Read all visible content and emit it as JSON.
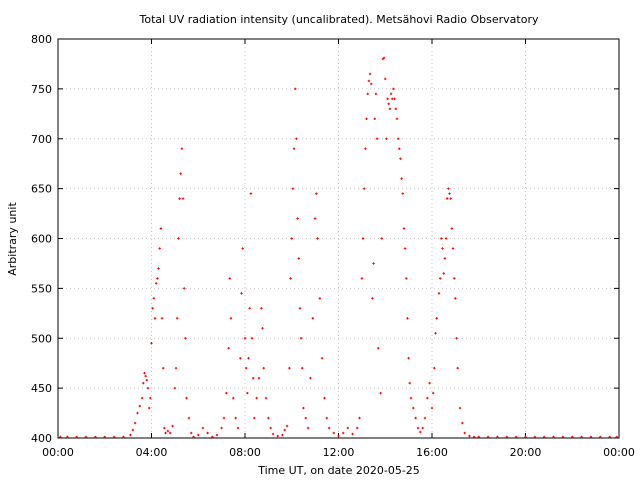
{
  "chart_data": {
    "type": "scatter",
    "title": "Total UV radiation intensity (uncalibrated). Metsähovi Radio Observatory",
    "xlabel": "Time UT, on date 2020-05-25",
    "ylabel": "Arbitrary unit",
    "xlim": [
      0,
      24
    ],
    "ylim": [
      400,
      800
    ],
    "xticks": [
      {
        "value": 0,
        "label": "00:00"
      },
      {
        "value": 4,
        "label": "04:00"
      },
      {
        "value": 8,
        "label": "08:00"
      },
      {
        "value": 12,
        "label": "12:00"
      },
      {
        "value": 16,
        "label": "16:00"
      },
      {
        "value": 20,
        "label": "20:00"
      },
      {
        "value": 24,
        "label": "00:00"
      }
    ],
    "yticks": [
      {
        "value": 400,
        "label": "400"
      },
      {
        "value": 450,
        "label": "450"
      },
      {
        "value": 500,
        "label": "500"
      },
      {
        "value": 550,
        "label": "550"
      },
      {
        "value": 600,
        "label": "600"
      },
      {
        "value": 650,
        "label": "650"
      },
      {
        "value": 700,
        "label": "700"
      },
      {
        "value": 750,
        "label": "750"
      },
      {
        "value": 800,
        "label": "800"
      }
    ],
    "grid": true,
    "series_color": "#ff0000",
    "points": [
      [
        0.1,
        401
      ],
      [
        0.4,
        401
      ],
      [
        0.8,
        401
      ],
      [
        1.2,
        401
      ],
      [
        1.6,
        401
      ],
      [
        2.0,
        401
      ],
      [
        2.4,
        401
      ],
      [
        2.8,
        401
      ],
      [
        3.1,
        403
      ],
      [
        3.2,
        408
      ],
      [
        3.3,
        415
      ],
      [
        3.4,
        425
      ],
      [
        3.5,
        432
      ],
      [
        3.6,
        440
      ],
      [
        3.65,
        455
      ],
      [
        3.7,
        465
      ],
      [
        3.75,
        462
      ],
      [
        3.8,
        458
      ],
      [
        3.85,
        450
      ],
      [
        3.9,
        430
      ],
      [
        3.95,
        440
      ],
      [
        4.0,
        495
      ],
      [
        4.05,
        530
      ],
      [
        4.1,
        540
      ],
      [
        4.15,
        520
      ],
      [
        4.2,
        555
      ],
      [
        4.25,
        560
      ],
      [
        4.3,
        570
      ],
      [
        4.35,
        590
      ],
      [
        4.4,
        610
      ],
      [
        4.45,
        520
      ],
      [
        4.5,
        470
      ],
      [
        4.55,
        410
      ],
      [
        4.6,
        405
      ],
      [
        4.7,
        407
      ],
      [
        4.8,
        405
      ],
      [
        4.9,
        412
      ],
      [
        5.0,
        450
      ],
      [
        5.05,
        470
      ],
      [
        5.1,
        520
      ],
      [
        5.15,
        600
      ],
      [
        5.2,
        640
      ],
      [
        5.25,
        665
      ],
      [
        5.3,
        690
      ],
      [
        5.35,
        640
      ],
      [
        5.4,
        550
      ],
      [
        5.45,
        500
      ],
      [
        5.5,
        440
      ],
      [
        5.6,
        420
      ],
      [
        5.7,
        405
      ],
      [
        5.8,
        401
      ],
      [
        6.0,
        403
      ],
      [
        6.2,
        410
      ],
      [
        6.4,
        405
      ],
      [
        6.6,
        401
      ],
      [
        6.8,
        403
      ],
      [
        7.0,
        410
      ],
      [
        7.1,
        420
      ],
      [
        7.2,
        445
      ],
      [
        7.3,
        490
      ],
      [
        7.35,
        560
      ],
      [
        7.4,
        520
      ],
      [
        7.5,
        440
      ],
      [
        7.6,
        420
      ],
      [
        7.7,
        410
      ],
      [
        7.8,
        480
      ],
      [
        7.85,
        545
      ],
      [
        7.9,
        590
      ],
      [
        8.0,
        500
      ],
      [
        8.05,
        470
      ],
      [
        8.1,
        445
      ],
      [
        8.15,
        480
      ],
      [
        8.2,
        530
      ],
      [
        8.25,
        645
      ],
      [
        8.3,
        500
      ],
      [
        8.35,
        460
      ],
      [
        8.4,
        420
      ],
      [
        8.5,
        440
      ],
      [
        8.6,
        460
      ],
      [
        8.7,
        530
      ],
      [
        8.75,
        510
      ],
      [
        8.8,
        470
      ],
      [
        8.9,
        440
      ],
      [
        9.0,
        420
      ],
      [
        9.1,
        410
      ],
      [
        9.2,
        404
      ],
      [
        9.4,
        402
      ],
      [
        9.6,
        403
      ],
      [
        9.7,
        408
      ],
      [
        9.8,
        412
      ],
      [
        9.9,
        470
      ],
      [
        9.95,
        560
      ],
      [
        10.0,
        600
      ],
      [
        10.05,
        650
      ],
      [
        10.1,
        690
      ],
      [
        10.15,
        750
      ],
      [
        10.2,
        700
      ],
      [
        10.25,
        620
      ],
      [
        10.3,
        580
      ],
      [
        10.35,
        530
      ],
      [
        10.4,
        500
      ],
      [
        10.45,
        470
      ],
      [
        10.5,
        430
      ],
      [
        10.6,
        420
      ],
      [
        10.7,
        410
      ],
      [
        10.8,
        460
      ],
      [
        10.9,
        520
      ],
      [
        11.0,
        620
      ],
      [
        11.05,
        645
      ],
      [
        11.1,
        600
      ],
      [
        11.2,
        540
      ],
      [
        11.3,
        480
      ],
      [
        11.4,
        440
      ],
      [
        11.5,
        420
      ],
      [
        11.6,
        410
      ],
      [
        11.8,
        405
      ],
      [
        12.0,
        402
      ],
      [
        12.2,
        405
      ],
      [
        12.4,
        410
      ],
      [
        12.6,
        404
      ],
      [
        12.8,
        410
      ],
      [
        12.9,
        420
      ],
      [
        13.0,
        560
      ],
      [
        13.05,
        600
      ],
      [
        13.1,
        650
      ],
      [
        13.15,
        690
      ],
      [
        13.2,
        720
      ],
      [
        13.25,
        745
      ],
      [
        13.3,
        758
      ],
      [
        13.35,
        765
      ],
      [
        13.4,
        755
      ],
      [
        13.45,
        540
      ],
      [
        13.5,
        575
      ],
      [
        13.55,
        720
      ],
      [
        13.6,
        745
      ],
      [
        13.65,
        700
      ],
      [
        13.7,
        490
      ],
      [
        13.8,
        445
      ],
      [
        13.85,
        600
      ],
      [
        13.9,
        780
      ],
      [
        13.95,
        781
      ],
      [
        14.0,
        760
      ],
      [
        14.05,
        700
      ],
      [
        14.1,
        740
      ],
      [
        14.15,
        735
      ],
      [
        14.2,
        730
      ],
      [
        14.25,
        745
      ],
      [
        14.3,
        740
      ],
      [
        14.35,
        750
      ],
      [
        14.4,
        740
      ],
      [
        14.45,
        730
      ],
      [
        14.5,
        720
      ],
      [
        14.55,
        700
      ],
      [
        14.6,
        690
      ],
      [
        14.65,
        680
      ],
      [
        14.7,
        660
      ],
      [
        14.75,
        645
      ],
      [
        14.8,
        610
      ],
      [
        14.85,
        590
      ],
      [
        14.9,
        560
      ],
      [
        14.95,
        520
      ],
      [
        15.0,
        480
      ],
      [
        15.05,
        455
      ],
      [
        15.1,
        440
      ],
      [
        15.2,
        430
      ],
      [
        15.3,
        420
      ],
      [
        15.4,
        410
      ],
      [
        15.5,
        406
      ],
      [
        15.6,
        410
      ],
      [
        15.7,
        420
      ],
      [
        15.8,
        440
      ],
      [
        15.9,
        455
      ],
      [
        16.0,
        430
      ],
      [
        16.05,
        445
      ],
      [
        16.1,
        470
      ],
      [
        16.15,
        505
      ],
      [
        16.2,
        520
      ],
      [
        16.3,
        545
      ],
      [
        16.35,
        560
      ],
      [
        16.4,
        600
      ],
      [
        16.45,
        590
      ],
      [
        16.5,
        565
      ],
      [
        16.55,
        580
      ],
      [
        16.6,
        600
      ],
      [
        16.65,
        640
      ],
      [
        16.7,
        650
      ],
      [
        16.75,
        645
      ],
      [
        16.8,
        640
      ],
      [
        16.85,
        610
      ],
      [
        16.9,
        590
      ],
      [
        16.95,
        560
      ],
      [
        17.0,
        540
      ],
      [
        17.05,
        500
      ],
      [
        17.1,
        470
      ],
      [
        17.2,
        430
      ],
      [
        17.3,
        415
      ],
      [
        17.4,
        405
      ],
      [
        17.6,
        402
      ],
      [
        17.8,
        401
      ],
      [
        18.0,
        401
      ],
      [
        18.4,
        401
      ],
      [
        18.8,
        401
      ],
      [
        19.2,
        401
      ],
      [
        19.6,
        401
      ],
      [
        20.0,
        401
      ],
      [
        20.4,
        401
      ],
      [
        20.8,
        401
      ],
      [
        21.2,
        401
      ],
      [
        21.6,
        401
      ],
      [
        22.0,
        401
      ],
      [
        22.4,
        401
      ],
      [
        22.8,
        401
      ],
      [
        23.2,
        401
      ],
      [
        23.6,
        401
      ],
      [
        23.9,
        401
      ]
    ]
  }
}
